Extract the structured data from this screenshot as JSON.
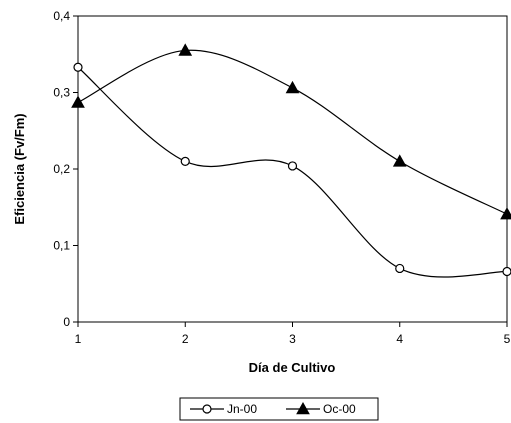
{
  "chart_data": {
    "type": "line",
    "x": [
      1,
      2,
      3,
      4,
      5
    ],
    "xlabel": "Día de Cultivo",
    "ylabel": "Eficiencia (Fv/Fm)",
    "xlim": [
      1,
      5
    ],
    "ylim": [
      0,
      0.4
    ],
    "x_ticks": [
      "1",
      "2",
      "3",
      "4",
      "5"
    ],
    "y_ticks": [
      "0",
      "0,1",
      "0,2",
      "0,3",
      "0,4"
    ],
    "y_tick_values": [
      0,
      0.1,
      0.2,
      0.3,
      0.4
    ],
    "grid": false,
    "smooth": true,
    "legend_position": "bottom",
    "series": [
      {
        "name": "Jn-00",
        "marker": "open-circle",
        "color": "#000000",
        "values": [
          0.333,
          0.21,
          0.204,
          0.07,
          0.066
        ]
      },
      {
        "name": "Oc-00",
        "marker": "filled-triangle",
        "color": "#000000",
        "values": [
          0.287,
          0.355,
          0.306,
          0.21,
          0.141
        ]
      }
    ]
  }
}
